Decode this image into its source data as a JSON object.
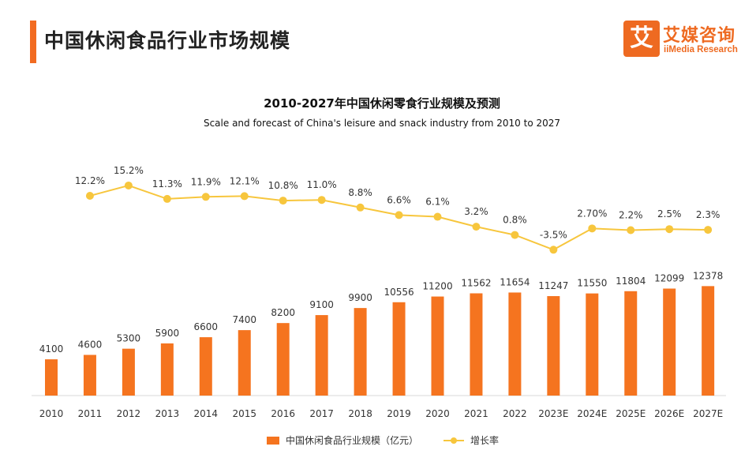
{
  "page": {
    "title": "中国休闲食品行业市场规模"
  },
  "logo": {
    "glyph": "艾",
    "name": "艾媒咨询",
    "subtitle": "iiMedia Research"
  },
  "colors": {
    "accent": "#f26b21",
    "bar": "#f5741f",
    "line": "#f7c63d"
  },
  "chart_data": {
    "type": "bar",
    "title": "2010-2027年中国休闲零食行业规模及预测",
    "subtitle": "Scale and forecast of China's leisure and snack industry from 2010 to 2027",
    "categories": [
      "2010",
      "2011",
      "2012",
      "2013",
      "2014",
      "2015",
      "2016",
      "2017",
      "2018",
      "2019",
      "2020",
      "2021",
      "2022",
      "2023E",
      "2024E",
      "2025E",
      "2026E",
      "2027E"
    ],
    "series": [
      {
        "name": "中国休闲食品行业规模（亿元）",
        "type": "bar",
        "color": "#f5741f",
        "values": [
          4100,
          4600,
          5300,
          5900,
          6600,
          7400,
          8200,
          9100,
          9900,
          10556,
          11200,
          11562,
          11654,
          11247,
          11550,
          11804,
          12099,
          12378
        ],
        "labels": [
          "4100",
          "4600",
          "5300",
          "5900",
          "6600",
          "7400",
          "8200",
          "9100",
          "9900",
          "10556",
          "11200",
          "11562",
          "11654",
          "11247",
          "11550",
          "11804",
          "12099",
          "12378"
        ]
      },
      {
        "name": "增长率",
        "type": "line",
        "color": "#f7c63d",
        "values": [
          null,
          12.2,
          15.2,
          11.3,
          11.9,
          12.1,
          10.8,
          11.0,
          8.8,
          6.6,
          6.1,
          3.2,
          0.8,
          -3.5,
          2.7,
          2.2,
          2.5,
          2.3
        ],
        "labels": [
          "",
          "12.2%",
          "15.2%",
          "11.3%",
          "11.9%",
          "12.1%",
          "10.8%",
          "11.0%",
          "8.8%",
          "6.6%",
          "6.1%",
          "3.2%",
          "0.8%",
          "-3.5%",
          "2.70%",
          "2.2%",
          "2.5%",
          "2.3%"
        ]
      }
    ],
    "legend_position": "bottom-center",
    "grid": false
  }
}
